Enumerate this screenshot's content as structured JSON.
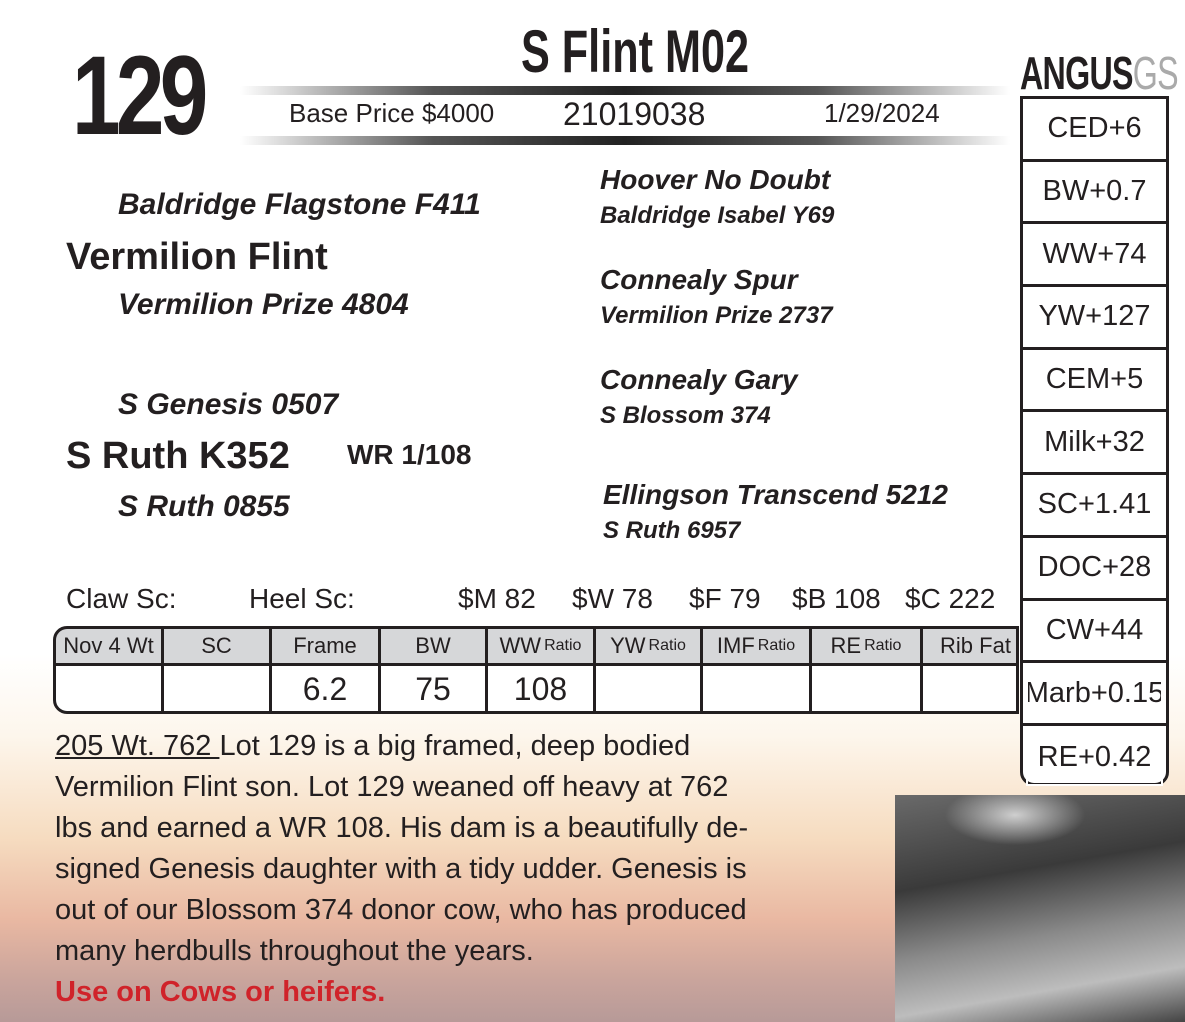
{
  "lot": "129",
  "name": "S Flint M02",
  "base_price": "Base Price $4000",
  "reg": "21019038",
  "date": "1/29/2024",
  "brand": {
    "main": "ANGUS",
    "sub": "GS"
  },
  "epds": [
    "CED+6",
    "BW+0.7",
    "WW+74",
    "YW+127",
    "CEM+5",
    "Milk+32",
    "SC+1.41",
    "DOC+28",
    "CW+44",
    "Marb+0.15",
    "RE+0.42"
  ],
  "pedigree": {
    "sire": "Vermilion Flint",
    "sire_sire": "Baldridge Flagstone F411",
    "sire_dam": "Vermilion Prize 4804",
    "ssg_sire": "Hoover No Doubt",
    "ssg_dam": "Baldridge Isabel Y69",
    "sdg_sire": "Connealy Spur",
    "sdg_dam": "Vermilion Prize 2737",
    "dam": "S Ruth K352",
    "dam_wr": "WR 1/108",
    "dam_sire": "S Genesis 0507",
    "dam_dam": "S Ruth 0855",
    "dsg_sire": "Connealy Gary",
    "dsg_dam": "S Blossom 374",
    "ddg_sire": "Ellingson Transcend 5212",
    "ddg_dam": "S Ruth 6957"
  },
  "scores": {
    "claw": "Claw Sc:",
    "heel": "Heel Sc:",
    "m": "$M 82",
    "w": "$W 78",
    "f": "$F 79",
    "b": "$B 108",
    "c": "$C 222"
  },
  "table": {
    "headers": [
      [
        "Nov 4 Wt",
        ""
      ],
      [
        "SC",
        ""
      ],
      [
        "Frame",
        ""
      ],
      [
        "BW",
        ""
      ],
      [
        "WW",
        "Ratio"
      ],
      [
        "YW",
        "Ratio"
      ],
      [
        "IMF",
        "Ratio"
      ],
      [
        "RE",
        "Ratio"
      ],
      [
        "Rib Fat",
        ""
      ]
    ],
    "values": [
      "",
      "",
      "6.2",
      "75",
      "108",
      "",
      "",
      "",
      ""
    ]
  },
  "description": {
    "weight": "205 Wt. 762 ",
    "lines": [
      "Lot 129 is a big framed, deep bodied",
      "Vermilion Flint son. Lot 129 weaned off heavy at 762",
      "lbs and earned a WR 108. His dam is a beautifully de-",
      "signed Genesis daughter with a tidy udder. Genesis is",
      "out of our Blossom 374 donor cow, who has produced",
      "many herdbulls throughout the years."
    ],
    "note": "Use on Cows or heifers."
  },
  "colors": {
    "note": "#d0232a",
    "header_cell": "#d6d7d9"
  }
}
